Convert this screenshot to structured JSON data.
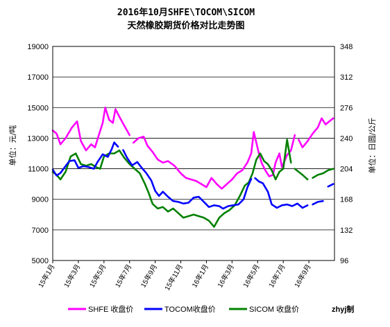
{
  "chart_data": {
    "type": "line",
    "title": "2016年10月SHFE\\TOCOM\\SICOM",
    "subtitle": "天然橡胶期货价格对比走势图",
    "ylabel_left": "单位：元/吨",
    "ylabel_right": "单位：日圆/公斤",
    "ylim_left": [
      5000,
      19000
    ],
    "yticks_left": [
      "5000",
      "7000",
      "9000",
      "11000",
      "13000",
      "15000",
      "17000",
      "19000"
    ],
    "ylim_right": [
      96,
      348
    ],
    "yticks_right": [
      "96",
      "132",
      "168",
      "204",
      "240",
      "276",
      "312",
      "348"
    ],
    "x_ticks": [
      "15年1月",
      "15年3月",
      "15年5月",
      "15年7月",
      "15年9月",
      "15年11月",
      "16年1月",
      "16年3月",
      "16年5月",
      "16年7月",
      "16年9月"
    ],
    "x_range_months": [
      0,
      22
    ],
    "grid": true,
    "legend_position": "bottom",
    "credit": "zhyj制",
    "series": [
      {
        "name": "SHFE 收盘价",
        "axis": "left",
        "color": "#ff00ff",
        "points": [
          [
            0,
            13500
          ],
          [
            0.3,
            13300
          ],
          [
            0.6,
            12600
          ],
          [
            1.0,
            13000
          ],
          [
            1.5,
            13700
          ],
          [
            1.9,
            14100
          ],
          [
            2.2,
            12800
          ],
          [
            2.6,
            12200
          ],
          [
            3.0,
            12600
          ],
          [
            3.3,
            12400
          ],
          [
            3.6,
            13200
          ],
          [
            3.9,
            14000
          ],
          [
            4.1,
            15000
          ],
          [
            4.4,
            14200
          ],
          [
            4.7,
            14000
          ],
          [
            4.9,
            14900
          ],
          [
            5.2,
            14400
          ],
          [
            5.6,
            13800
          ],
          [
            6.0,
            13200
          ],
          [
            6.3,
            12700
          ],
          [
            6.7,
            13000
          ],
          [
            7.1,
            13100
          ],
          [
            7.4,
            12500
          ],
          [
            7.8,
            12100
          ],
          [
            8.2,
            11600
          ],
          [
            8.6,
            11400
          ],
          [
            9.0,
            11500
          ],
          [
            9.5,
            11200
          ],
          [
            10.0,
            10700
          ],
          [
            10.4,
            10400
          ],
          [
            10.8,
            10300
          ],
          [
            11.2,
            10200
          ],
          [
            11.6,
            10000
          ],
          [
            12.0,
            9800
          ],
          [
            12.4,
            10400
          ],
          [
            12.8,
            10000
          ],
          [
            13.2,
            9700
          ],
          [
            13.6,
            10000
          ],
          [
            14.0,
            10300
          ],
          [
            14.4,
            10700
          ],
          [
            14.8,
            10900
          ],
          [
            15.2,
            11400
          ],
          [
            15.5,
            12000
          ],
          [
            15.7,
            13400
          ],
          [
            15.9,
            12700
          ],
          [
            16.1,
            12000
          ],
          [
            16.3,
            11400
          ],
          [
            16.6,
            10900
          ],
          [
            16.9,
            10500
          ],
          [
            17.2,
            10600
          ],
          [
            17.4,
            11400
          ],
          [
            17.7,
            12000
          ],
          [
            17.9,
            11100
          ],
          [
            18.3,
            11900
          ],
          [
            18.6,
            12200
          ],
          [
            18.9,
            13200
          ],
          [
            19.2,
            12900
          ],
          [
            19.5,
            12400
          ],
          [
            19.9,
            12800
          ],
          [
            20.3,
            13300
          ],
          [
            20.7,
            13700
          ],
          [
            21.0,
            14300
          ],
          [
            21.3,
            13900
          ],
          [
            21.6,
            14100
          ],
          [
            21.9,
            14300
          ]
        ],
        "gaps_after": [
          18,
          55
        ]
      },
      {
        "name": "TOCOM收盘价",
        "axis": "right",
        "color": "#0000ff",
        "points": [
          [
            0,
            203
          ],
          [
            0.3,
            196
          ],
          [
            0.6,
            199
          ],
          [
            0.9,
            205
          ],
          [
            1.3,
            213
          ],
          [
            1.7,
            214
          ],
          [
            2.0,
            205
          ],
          [
            2.4,
            207
          ],
          [
            2.8,
            206
          ],
          [
            3.2,
            204
          ],
          [
            3.5,
            212
          ],
          [
            3.9,
            221
          ],
          [
            4.3,
            218
          ],
          [
            4.6,
            227
          ],
          [
            4.8,
            235
          ],
          [
            5.1,
            230
          ],
          [
            5.5,
            226
          ],
          [
            5.8,
            217
          ],
          [
            6.2,
            208
          ],
          [
            6.6,
            212
          ],
          [
            6.9,
            206
          ],
          [
            7.3,
            199
          ],
          [
            7.7,
            190
          ],
          [
            8.0,
            178
          ],
          [
            8.3,
            172
          ],
          [
            8.6,
            177
          ],
          [
            9.0,
            171
          ],
          [
            9.4,
            166
          ],
          [
            9.8,
            165
          ],
          [
            10.2,
            163
          ],
          [
            10.6,
            164
          ],
          [
            11.0,
            170
          ],
          [
            11.4,
            171
          ],
          [
            11.8,
            165
          ],
          [
            12.2,
            159
          ],
          [
            12.6,
            161
          ],
          [
            13.0,
            160
          ],
          [
            13.3,
            157
          ],
          [
            13.7,
            160
          ],
          [
            14.1,
            161
          ],
          [
            14.5,
            162
          ],
          [
            14.9,
            168
          ],
          [
            15.2,
            182
          ],
          [
            15.5,
            192
          ],
          [
            15.8,
            193
          ],
          [
            16.1,
            189
          ],
          [
            16.4,
            187
          ],
          [
            16.8,
            177
          ],
          [
            17.1,
            162
          ],
          [
            17.5,
            158
          ],
          [
            17.9,
            161
          ],
          [
            18.3,
            162
          ],
          [
            18.7,
            160
          ],
          [
            19.1,
            163
          ],
          [
            19.5,
            158
          ],
          [
            19.9,
            161
          ],
          [
            20.3,
            162
          ],
          [
            20.7,
            165
          ],
          [
            21.1,
            166
          ],
          [
            21.5,
            183
          ],
          [
            21.9,
            186
          ]
        ],
        "gaps_after": [
          15,
          43,
          55,
          58
        ]
      },
      {
        "name": "SICOM 收盘价",
        "axis": "left",
        "color": "#008000",
        "points": [
          [
            0,
            10800
          ],
          [
            0.3,
            10600
          ],
          [
            0.6,
            10300
          ],
          [
            1.0,
            10800
          ],
          [
            1.4,
            11800
          ],
          [
            1.8,
            12000
          ],
          [
            2.2,
            11300
          ],
          [
            2.6,
            11200
          ],
          [
            3.0,
            11300
          ],
          [
            3.4,
            11100
          ],
          [
            3.7,
            11000
          ],
          [
            4.0,
            11800
          ],
          [
            4.4,
            12000
          ],
          [
            4.8,
            12000
          ],
          [
            5.2,
            12200
          ],
          [
            5.6,
            11700
          ],
          [
            6.0,
            11300
          ],
          [
            6.4,
            11000
          ],
          [
            6.8,
            10700
          ],
          [
            7.2,
            10000
          ],
          [
            7.5,
            9400
          ],
          [
            7.8,
            8700
          ],
          [
            8.2,
            8400
          ],
          [
            8.6,
            8500
          ],
          [
            9.0,
            8200
          ],
          [
            9.4,
            8400
          ],
          [
            9.8,
            8100
          ],
          [
            10.2,
            7800
          ],
          [
            10.6,
            7900
          ],
          [
            11.0,
            8000
          ],
          [
            11.4,
            7900
          ],
          [
            11.8,
            7800
          ],
          [
            12.2,
            7600
          ],
          [
            12.6,
            7200
          ],
          [
            13.0,
            7800
          ],
          [
            13.4,
            8100
          ],
          [
            13.8,
            8300
          ],
          [
            14.2,
            8600
          ],
          [
            14.6,
            9200
          ],
          [
            15.0,
            9900
          ],
          [
            15.3,
            10100
          ],
          [
            15.6,
            10700
          ],
          [
            15.9,
            11600
          ],
          [
            16.2,
            12000
          ],
          [
            16.5,
            11500
          ],
          [
            16.8,
            11300
          ],
          [
            17.1,
            10900
          ],
          [
            17.4,
            10300
          ],
          [
            17.7,
            10800
          ],
          [
            18.0,
            11000
          ],
          [
            18.3,
            12900
          ],
          [
            18.6,
            11400
          ],
          [
            18.9,
            11000
          ],
          [
            19.2,
            10800
          ],
          [
            19.5,
            10600
          ],
          [
            19.9,
            10300
          ],
          [
            20.3,
            10400
          ],
          [
            20.7,
            10600
          ],
          [
            21.1,
            10700
          ],
          [
            21.5,
            10900
          ],
          [
            21.9,
            11000
          ]
        ],
        "gaps_after": [
          51,
          55
        ]
      }
    ]
  }
}
